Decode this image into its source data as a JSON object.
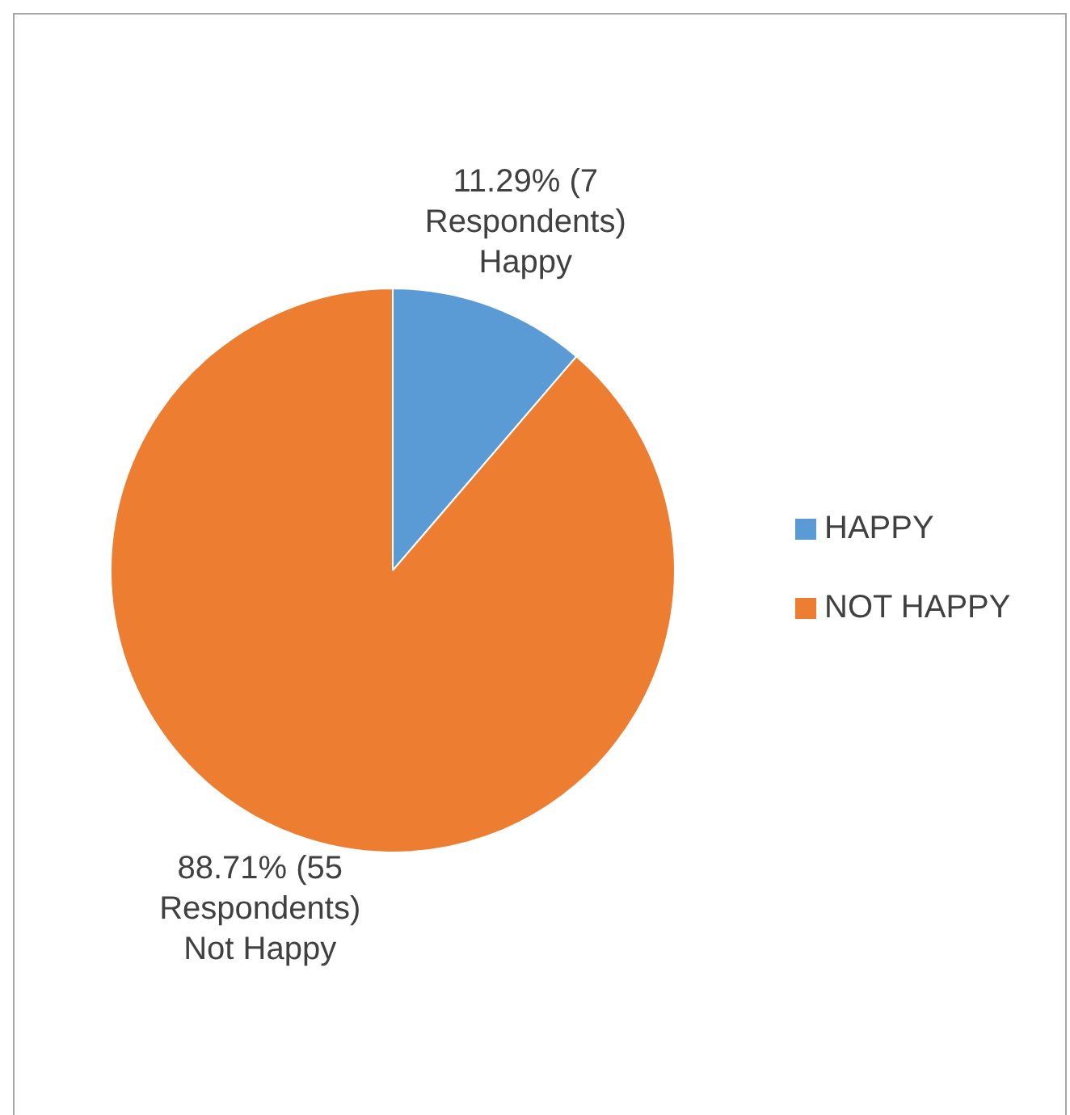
{
  "chart_data": {
    "type": "pie",
    "categories": [
      "HAPPY",
      "NOT HAPPY"
    ],
    "values": [
      11.29,
      88.71
    ],
    "colors": [
      "#5b9bd5",
      "#ed7d31"
    ],
    "value_labels": [
      "11.29% (7 Respondents) Happy",
      "88.71% (55 Respondents) Not Happy"
    ],
    "legend": "right"
  }
}
